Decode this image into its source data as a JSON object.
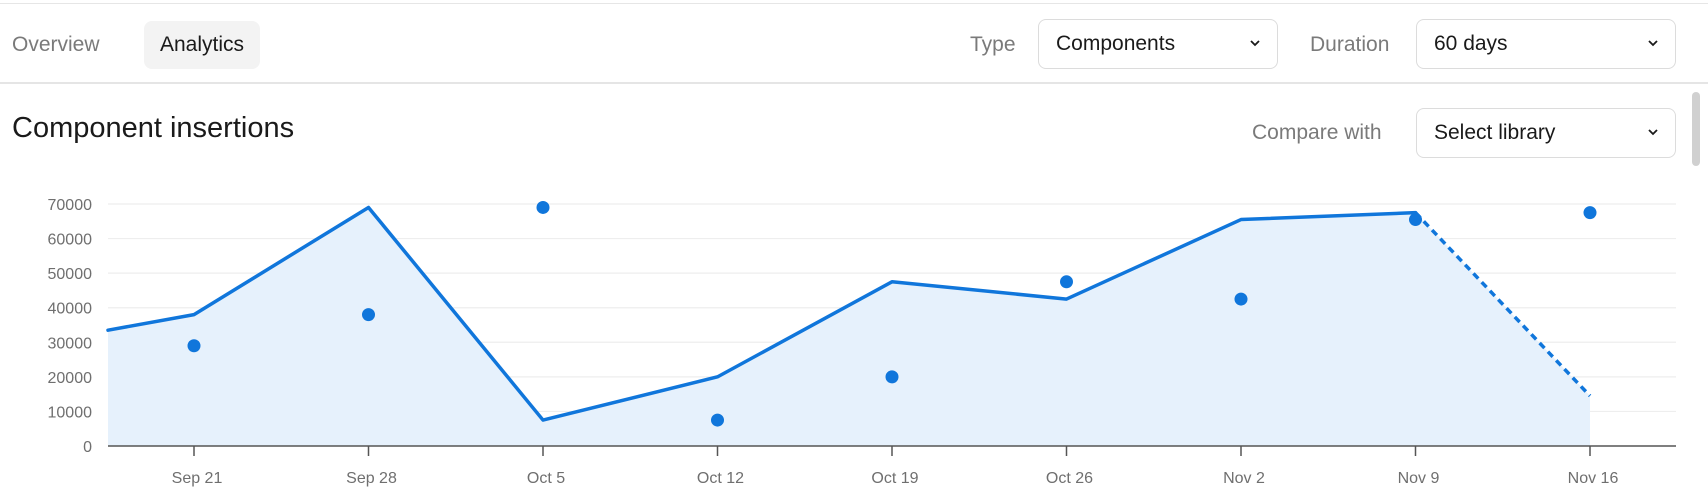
{
  "tabs": [
    {
      "label": "Overview",
      "active": false
    },
    {
      "label": "Analytics",
      "active": true
    }
  ],
  "filters": {
    "type_label": "Type",
    "type_value": "Components",
    "duration_label": "Duration",
    "duration_value": "60 days"
  },
  "section": {
    "title": "Component insertions",
    "compare_label": "Compare with",
    "compare_value": "Select library"
  },
  "icons": {
    "dropdown": "chevron-down-icon"
  },
  "colors": {
    "accent": "#1076db",
    "area_fill": "#e6f1fc",
    "grid": "#eeeeee",
    "axis": "#555555"
  },
  "chart_data": {
    "type": "line",
    "categories": [
      "Sep 21",
      "Sep 28",
      "Oct 5",
      "Oct 12",
      "Oct 19",
      "Oct 26",
      "Nov 2",
      "Nov 9",
      "Nov 16"
    ],
    "y_ticks": [
      0,
      10000,
      20000,
      30000,
      40000,
      50000,
      60000,
      70000
    ],
    "ylim": [
      0,
      70000
    ],
    "line_leading_value": 33500,
    "series": [
      {
        "style": "line-area",
        "values": [
          38000,
          69000,
          7500,
          20000,
          47500,
          42500,
          65500,
          67500,
          14500
        ],
        "projected_last": true
      },
      {
        "style": "points",
        "values": [
          29000,
          38000,
          69000,
          7500,
          20000,
          47500,
          42500,
          65500,
          67500
        ]
      }
    ],
    "grid": true,
    "legend": "none"
  }
}
